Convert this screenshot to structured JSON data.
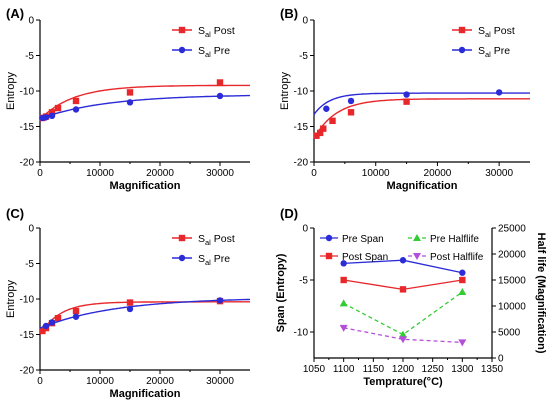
{
  "figure": {
    "colors": {
      "post": "#e8272a",
      "pre": "#2b2bd8",
      "pre_half": "#33cc33",
      "post_half": "#b54fd9",
      "axis": "#000000"
    }
  },
  "chart_data": [
    {
      "panel_label": "(A)",
      "type": "scatter",
      "xlabel": "Magnification",
      "ylabel": "Entropy",
      "xlim": [
        0,
        35000
      ],
      "ylim": [
        -20,
        0
      ],
      "xticks": [
        0,
        10000,
        20000,
        30000
      ],
      "yticks": [
        -20,
        -15,
        -10,
        -5,
        0
      ],
      "xtick_labels": [
        "0",
        "10000",
        "20000",
        "30000"
      ],
      "ytick_labels": [
        "-20",
        "-15",
        "-10",
        "-5",
        "0"
      ],
      "legend_position": "top-right",
      "series": [
        {
          "name_main": "S",
          "name_sub": "al",
          "name_suffix": " Post",
          "color": "post",
          "marker": "square",
          "x": [
            400,
            1000,
            2000,
            3000,
            6000,
            15000,
            30000
          ],
          "y": [
            -13.8,
            -13.6,
            -13.0,
            -12.4,
            -11.4,
            -10.2,
            -8.8
          ],
          "fit": {
            "a": -9.2,
            "b": -4.8,
            "k": 0.00018
          }
        },
        {
          "name_main": "S",
          "name_sub": "al",
          "name_suffix": " Pre",
          "color": "pre",
          "marker": "circle",
          "x": [
            400,
            1000,
            2000,
            6000,
            15000,
            30000
          ],
          "y": [
            -13.8,
            -13.7,
            -13.5,
            -12.6,
            -11.6,
            -10.7
          ],
          "fit": {
            "a": -10.5,
            "b": -3.4,
            "k": 9e-05
          }
        }
      ]
    },
    {
      "panel_label": "(B)",
      "type": "scatter",
      "xlabel": "Magnification",
      "ylabel": "Entropy",
      "xlim": [
        0,
        35000
      ],
      "ylim": [
        -20,
        0
      ],
      "xticks": [
        0,
        10000,
        20000,
        30000
      ],
      "yticks": [
        -20,
        -15,
        -10,
        -5,
        0
      ],
      "xtick_labels": [
        "0",
        "10000",
        "20000",
        "30000"
      ],
      "ytick_labels": [
        "-20",
        "-15",
        "-10",
        "-5",
        "0"
      ],
      "legend_position": "top-right",
      "series": [
        {
          "name_main": "S",
          "name_sub": "al",
          "name_suffix": " Post",
          "color": "post",
          "marker": "square",
          "x": [
            400,
            1000,
            1500,
            3000,
            6000,
            15000
          ],
          "y": [
            -16.3,
            -15.9,
            -15.3,
            -14.2,
            -13.0,
            -11.5
          ],
          "fit": {
            "a": -11.1,
            "b": -5.6,
            "k": 0.00028
          }
        },
        {
          "name_main": "S",
          "name_sub": "al",
          "name_suffix": " Pre",
          "color": "pre",
          "marker": "circle",
          "x": [
            2000,
            6000,
            15000,
            30000
          ],
          "y": [
            -12.5,
            -11.4,
            -10.5,
            -10.2
          ],
          "fit": {
            "a": -10.3,
            "b": -3.0,
            "k": 0.0004
          }
        }
      ]
    },
    {
      "panel_label": "(C)",
      "type": "scatter",
      "xlabel": "Magnification",
      "ylabel": "Entropy",
      "xlim": [
        0,
        35000
      ],
      "ylim": [
        -20,
        0
      ],
      "xticks": [
        0,
        10000,
        20000,
        30000
      ],
      "yticks": [
        -20,
        -15,
        -10,
        -5,
        0
      ],
      "xtick_labels": [
        "0",
        "10000",
        "20000",
        "30000"
      ],
      "ytick_labels": [
        "-20",
        "-15",
        "-10",
        "-5",
        "0"
      ],
      "legend_position": "top-right",
      "series": [
        {
          "name_main": "S",
          "name_sub": "al",
          "name_suffix": " Post",
          "color": "post",
          "marker": "square",
          "x": [
            400,
            1000,
            2000,
            3000,
            6000,
            15000,
            30000
          ],
          "y": [
            -14.5,
            -14.1,
            -13.4,
            -12.7,
            -11.7,
            -10.5,
            -10.3
          ],
          "fit": {
            "a": -10.4,
            "b": -4.6,
            "k": 0.0003
          }
        },
        {
          "name_main": "S",
          "name_sub": "al",
          "name_suffix": " Pre",
          "color": "pre",
          "marker": "circle",
          "x": [
            1000,
            2000,
            6000,
            15000,
            30000
          ],
          "y": [
            -13.8,
            -13.3,
            -12.5,
            -11.4,
            -10.2
          ],
          "fit": {
            "a": -9.8,
            "b": -4.3,
            "k": 8e-05
          }
        }
      ]
    },
    {
      "panel_label": "(D)",
      "type": "line",
      "xlabel": "Temprature(°C)",
      "ylabel": "Span (Entropy)",
      "ylabel_right": "Half life (Magnification)",
      "xlim": [
        1050,
        1350
      ],
      "ylim": [
        -12.5,
        0
      ],
      "ylim_right": [
        0,
        25000
      ],
      "xticks": [
        1050,
        1100,
        1150,
        1200,
        1250,
        1300,
        1350
      ],
      "yticks": [
        -10,
        -5,
        0
      ],
      "yticks_right": [
        0,
        5000,
        10000,
        15000,
        20000,
        25000
      ],
      "xtick_labels": [
        "1050",
        "1100",
        "1150",
        "1200",
        "1250",
        "1300",
        "1350"
      ],
      "ytick_labels": [
        "-10",
        "-5",
        "0"
      ],
      "ytick_labels_right": [
        "0",
        "5000",
        "10000",
        "15000",
        "20000",
        "25000"
      ],
      "legend_position": "top",
      "series": [
        {
          "name": "Pre Span",
          "color": "pre",
          "marker": "circle",
          "dashed": false,
          "axis": "left",
          "x": [
            1100,
            1200,
            1300
          ],
          "y": [
            -3.4,
            -3.1,
            -4.3
          ]
        },
        {
          "name": "Post Span",
          "color": "post",
          "marker": "square",
          "dashed": false,
          "axis": "left",
          "x": [
            1100,
            1200,
            1300
          ],
          "y": [
            -5.0,
            -5.9,
            -5.0
          ]
        },
        {
          "name": "Pre Halflife",
          "color": "pre_half",
          "marker": "triangle-up",
          "dashed": true,
          "axis": "right",
          "x": [
            1100,
            1200,
            1300
          ],
          "y": [
            10500,
            4500,
            12700
          ]
        },
        {
          "name": "Post Halflife",
          "color": "post_half",
          "marker": "triangle-down",
          "dashed": true,
          "axis": "right",
          "x": [
            1100,
            1200,
            1300
          ],
          "y": [
            5800,
            3600,
            3000
          ]
        }
      ]
    }
  ]
}
